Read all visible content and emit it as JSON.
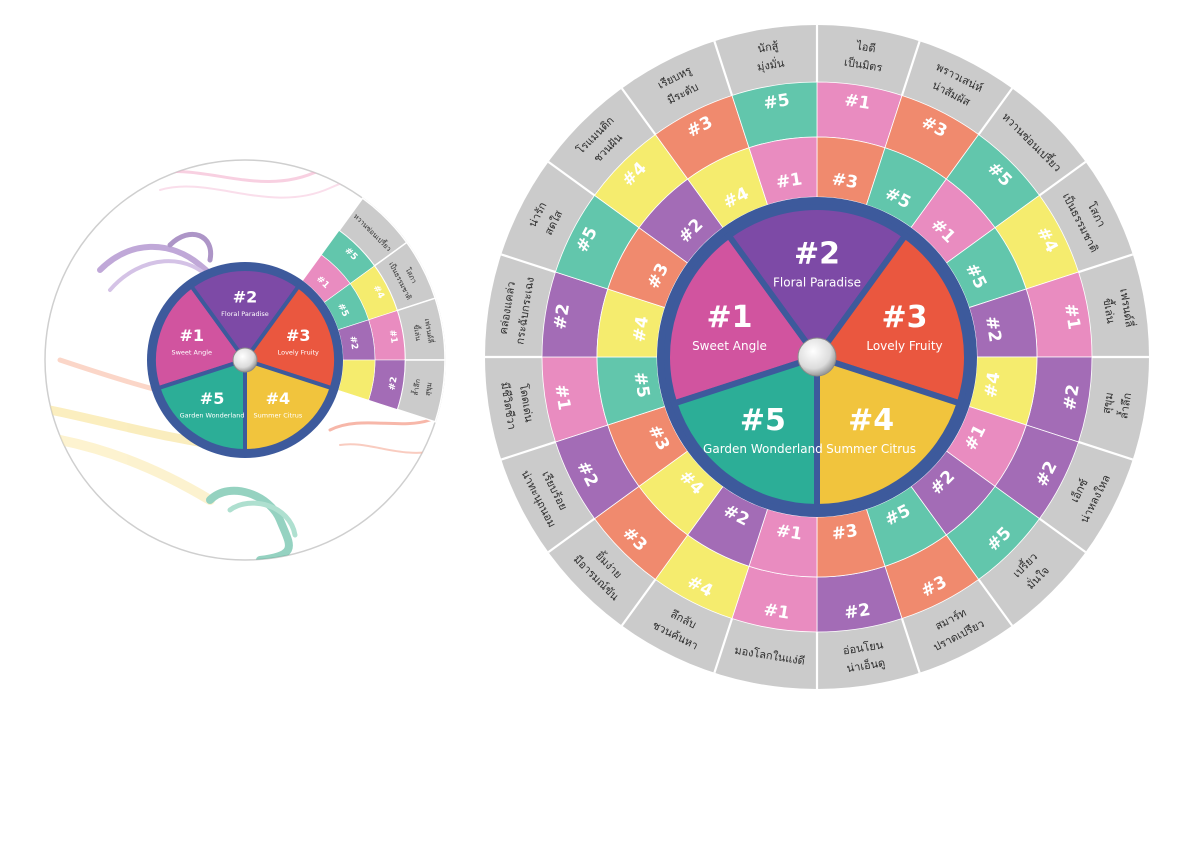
{
  "colors": {
    "c1": "#d1549f",
    "c2": "#7d4aa6",
    "c3": "#ea573f",
    "c4": "#f1c43d",
    "c5": "#2cae97",
    "ring1": "#e98cc0",
    "ring2": "#a36cb6",
    "ring3": "#f08a6e",
    "ring4": "#f5ec6e",
    "ring5": "#62c6ac",
    "outer_band": "#cbcbcb",
    "divider": "#3d5a9c"
  },
  "core_segments": [
    {
      "num": "#1",
      "name": "Sweet Angle",
      "color_key": "c1"
    },
    {
      "num": "#2",
      "name": "Floral Paradise",
      "color_key": "c2"
    },
    {
      "num": "#3",
      "name": "Lovely Fruity",
      "color_key": "c3"
    },
    {
      "num": "#4",
      "name": "Summer Citrus",
      "color_key": "c4"
    },
    {
      "num": "#5",
      "name": "Garden Wonderland",
      "color_key": "c5"
    }
  ],
  "outer_labels": [
    "ไอดี เป็นมิตร",
    "พราวเสน่ห์ น่าสัมผัส",
    "หวานซ่อนเปรี้ยว",
    "โสภา เป็นธรรมชาติ",
    "เฟรนด์ลี่ ขี้เล่น",
    "สุขุม ล้ำลึก",
    "เอ็กซ์ น่าหลงใหล",
    "เปรี้ยว มั่นใจ",
    "สมาร์ท ปราดเปรียว",
    "อ่อนโยน น่าเอ็นดู",
    "มองโลกในแง่ดี",
    "ลึกลับ ชวนค้นหา",
    "ยิ้มง่าย มีอารมณ์ขัน",
    "เรียบร้อย น่าทะนุถนอม",
    "โดดเด่น มีชีวิตชีวา",
    "คล่องแคล่ว กระฉับกระเฉง",
    "น่ารัก สดใส",
    "โรแมนติก ชวนฝัน",
    "เรียบหรู มีระดับ",
    "นักสู้ มุ่งมั่น"
  ],
  "ring_outer": [
    "#1",
    "#3",
    "#5",
    "#4",
    "#1",
    "#2",
    "#2",
    "#5",
    "#3",
    "#2",
    "#1",
    "#4",
    "#3",
    "#2",
    "#1",
    "#2",
    "#5",
    "#4",
    "#3",
    "#5"
  ],
  "ring_inner": [
    "#3",
    "#5",
    "#1",
    "#5",
    "#2",
    "#4",
    "#1",
    "#2",
    "#5",
    "#3",
    "#1",
    "#2",
    "#4",
    "#3",
    "#5",
    "#4",
    "#3",
    "#2",
    "#4",
    "#1"
  ],
  "small_wheel": {
    "outer_labels": [
      "หวานซ่อนเปรี้ยว",
      "โสภา เป็นธรรมชาติ",
      "เฟรนด์ลี่ ขี้เล่น",
      "สุขุม ล้ำลึก"
    ],
    "ring_outer": [
      "#5",
      "#4",
      "#1",
      "#2"
    ],
    "ring_inner": [
      "#1",
      "#5",
      "#2",
      ""
    ]
  }
}
